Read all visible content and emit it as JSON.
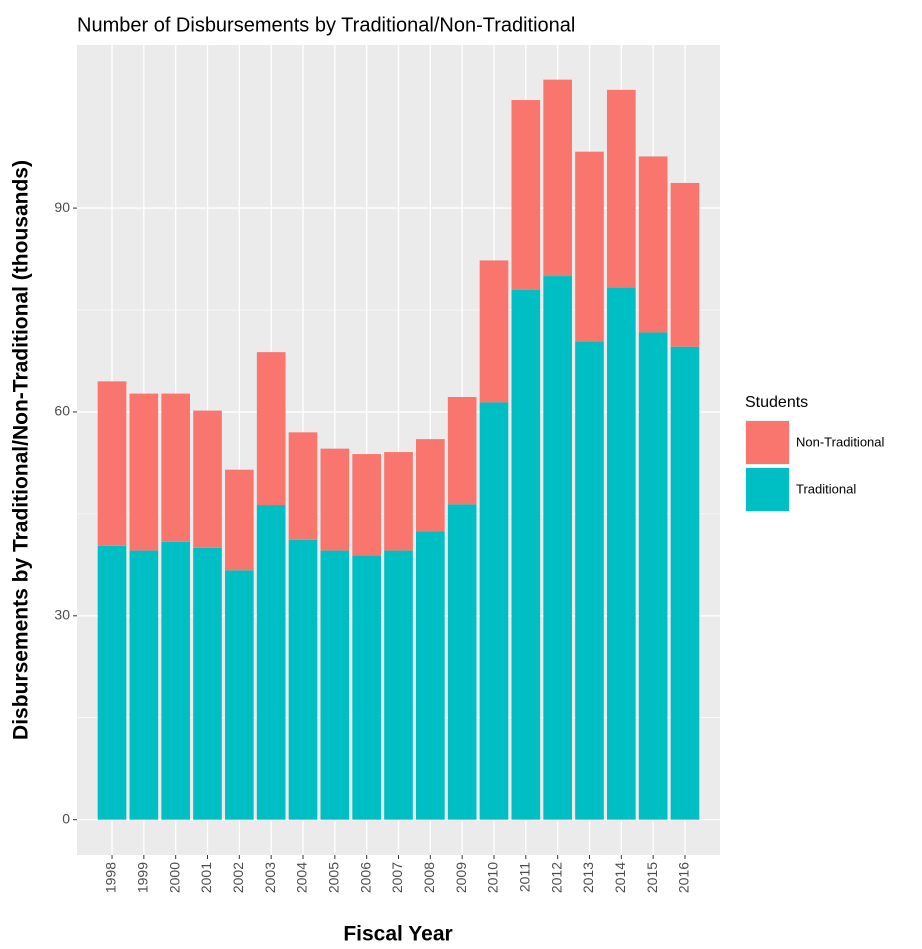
{
  "chart_data": {
    "type": "stacked_bar",
    "title": "Number of Disbursements by Traditional/Non-Traditional",
    "x_label": "Fiscal Year",
    "y_label": "Disbursements by Traditional/Non-Traditional (thousands)",
    "legend_title": "Students",
    "legend_position": "right",
    "categories": [
      "1998",
      "1999",
      "2000",
      "2001",
      "2002",
      "2003",
      "2004",
      "2005",
      "2006",
      "2007",
      "2008",
      "2009",
      "2010",
      "2011",
      "2012",
      "2013",
      "2014",
      "2015",
      "2016"
    ],
    "series": [
      {
        "name": "Non-Traditional",
        "color": "#f8766d",
        "values": [
          24.2,
          23.1,
          21.8,
          20.2,
          14.8,
          22.5,
          15.8,
          15.0,
          14.9,
          14.5,
          13.6,
          15.8,
          20.9,
          27.9,
          28.9,
          27.9,
          29.1,
          25.9,
          24.1
        ]
      },
      {
        "name": "Traditional",
        "color": "#00bfc4",
        "values": [
          40.3,
          39.6,
          40.9,
          40.0,
          36.7,
          46.3,
          41.2,
          39.6,
          38.9,
          39.6,
          42.4,
          46.4,
          61.4,
          78.0,
          80.0,
          70.4,
          78.3,
          71.7,
          69.6
        ]
      }
    ],
    "ylim": [
      -5.2,
      114
    ],
    "yticks": [
      0,
      30,
      60,
      90
    ],
    "grid": true
  }
}
